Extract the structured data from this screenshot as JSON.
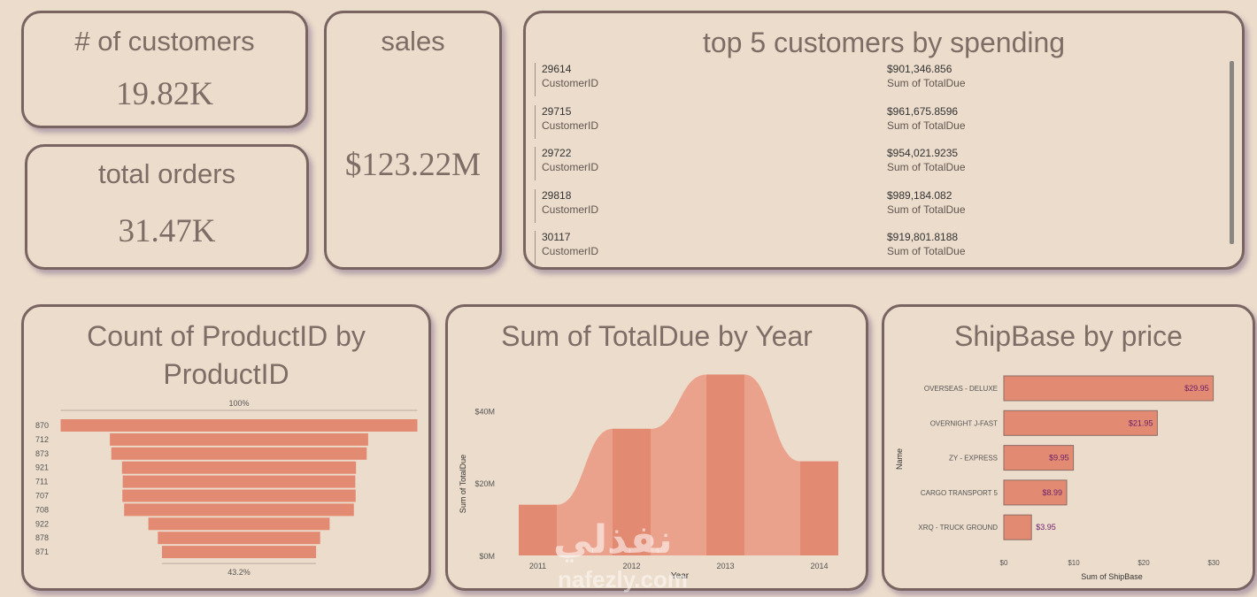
{
  "kpis": {
    "customers": {
      "title": "# of customers",
      "value": "19.82K"
    },
    "orders": {
      "title": "total orders",
      "value": "31.47K"
    },
    "sales": {
      "title": "sales",
      "value": "$123.22M"
    }
  },
  "top_customers": {
    "title": "top 5 customers by spending",
    "id_label": "CustomerID",
    "amount_label": "Sum of TotalDue",
    "rows": [
      {
        "id": "29614",
        "amount": "$901,346.856"
      },
      {
        "id": "29715",
        "amount": "$961,675.8596"
      },
      {
        "id": "29722",
        "amount": "$954,021.9235"
      },
      {
        "id": "29818",
        "amount": "$989,184.082"
      },
      {
        "id": "30117",
        "amount": "$919,801.8188"
      }
    ]
  },
  "watermark": {
    "arabic": "نفذلي",
    "latin": "nafezly.com"
  },
  "colors": {
    "bar": "#e28a72",
    "bar_light": "#eba28d",
    "text": "#7d6d66",
    "label_purple": "#6a1f6a"
  },
  "chart_data": [
    {
      "type": "bar",
      "subtype": "funnel",
      "title": "Count of ProductID by ProductID",
      "categories": [
        "870",
        "712",
        "873",
        "921",
        "711",
        "707",
        "708",
        "922",
        "878",
        "871"
      ],
      "values": [
        100,
        72.4,
        71.6,
        65.6,
        65.2,
        65.4,
        64.4,
        50.8,
        45.5,
        43.2
      ],
      "top_label": "100%",
      "bottom_label": "43.2%"
    },
    {
      "type": "area",
      "title": "Sum of TotalDue by Year",
      "xlabel": "Year",
      "ylabel": "Sum of TotalDue",
      "categories": [
        "2011",
        "2012",
        "2013",
        "2014"
      ],
      "values": [
        14,
        35,
        50,
        26
      ],
      "y_ticks": [
        "$0M",
        "$20M",
        "$40M"
      ],
      "ylim": [
        0,
        55
      ]
    },
    {
      "type": "bar",
      "orientation": "horizontal",
      "title": "ShipBase by price",
      "xlabel": "Sum of ShipBase",
      "ylabel": "Name",
      "categories": [
        "OVERSEAS - DELUXE",
        "OVERNIGHT J-FAST",
        "ZY - EXPRESS",
        "CARGO TRANSPORT 5",
        "XRQ - TRUCK GROUND"
      ],
      "values": [
        29.95,
        21.95,
        9.95,
        8.99,
        3.95
      ],
      "value_labels": [
        "$29.95",
        "$21.95",
        "$9.95",
        "$8.99",
        "$3.95"
      ],
      "x_ticks": [
        0,
        10,
        20,
        30
      ],
      "x_tick_labels": [
        "$0",
        "$10",
        "$20",
        "$30"
      ],
      "xlim": [
        0,
        30
      ]
    }
  ]
}
